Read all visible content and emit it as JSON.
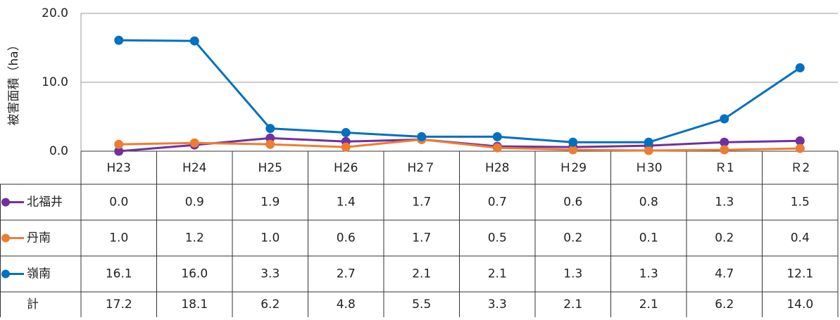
{
  "chart_data": {
    "type": "line",
    "y_label": "被害面積（ha）",
    "categories": [
      "H23",
      "H24",
      "H25",
      "H26",
      "H2７",
      "H28",
      "Ｈ29",
      "Ｈ30",
      "Ｒ1",
      "Ｒ2"
    ],
    "ylim": [
      0,
      20
    ],
    "yticks": [
      {
        "value": 0,
        "label": "0.0"
      },
      {
        "value": 10,
        "label": "10.0"
      },
      {
        "value": 20,
        "label": "20.0"
      }
    ],
    "grid": true,
    "series": [
      {
        "name": "北福井",
        "color": "#7030a0",
        "values": [
          0,
          0.9,
          1.9,
          1.4,
          1.7,
          0.7,
          0.6,
          0.8,
          1.3,
          1.5
        ],
        "value_labels": [
          "0.0",
          "0.9",
          "1.9",
          "1.4",
          "1.7",
          "0.7",
          "0.6",
          "0.8",
          "1.3",
          "1.5"
        ]
      },
      {
        "name": "丹南",
        "color": "#ed7d31",
        "values": [
          1,
          1.2,
          1,
          0.6,
          1.7,
          0.5,
          0.2,
          0.1,
          0.2,
          0.4
        ],
        "value_labels": [
          "1.0",
          "1.2",
          "1.0",
          "0.6",
          "1.7",
          "0.5",
          "0.2",
          "0.1",
          "0.2",
          "0.4"
        ]
      },
      {
        "name": "嶺南",
        "color": "#0070c0",
        "values": [
          16.1,
          16,
          3.3,
          2.7,
          2.1,
          2.1,
          1.3,
          1.3,
          4.7,
          12.1
        ],
        "value_labels": [
          "16.1",
          "16.0",
          "3.3",
          "2.7",
          "2.1",
          "2.1",
          "1.3",
          "1.3",
          "4.7",
          "12.1"
        ]
      }
    ],
    "total": {
      "name": "計",
      "values": [
        17.2,
        18.1,
        6.2,
        4.8,
        5.5,
        3.3,
        2.1,
        2.1,
        6.2,
        14
      ],
      "value_labels": [
        "17.2",
        "18.1",
        "6.2",
        "4.8",
        "5.5",
        "3.3",
        "2.1",
        "2.1",
        "6.2",
        "14.0"
      ]
    }
  }
}
